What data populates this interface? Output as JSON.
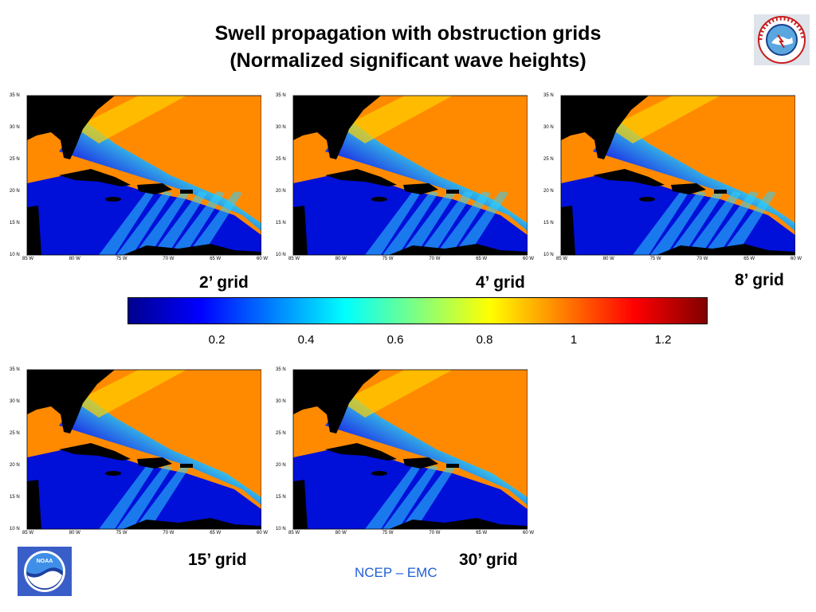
{
  "title": {
    "line1": "Swell propagation with obstruction grids",
    "line2": "(Normalized significant wave heights)"
  },
  "logos": {
    "nws": "NATIONAL WEATHER SERVICE",
    "noaa": "NOAA"
  },
  "panels": [
    {
      "caption": "2’ grid"
    },
    {
      "caption": "4’ grid"
    },
    {
      "caption": "8’ grid"
    },
    {
      "caption": "15’ grid"
    },
    {
      "caption": "30’ grid"
    }
  ],
  "axes": {
    "y_ticks": [
      "35 N",
      "30 N",
      "25 N",
      "20 N",
      "15 N",
      "10 N"
    ],
    "x_ticks": [
      "85 W",
      "80 W",
      "75 W",
      "70 W",
      "65 W",
      "60 W"
    ]
  },
  "colorbar": {
    "labels": [
      "0.2",
      "0.4",
      "0.6",
      "0.8",
      "1",
      "1.2"
    ],
    "min": 0,
    "max": 1.3,
    "colors": [
      "#00008f",
      "#0000ff",
      "#0080ff",
      "#00ffff",
      "#80ff80",
      "#ffff00",
      "#ff8000",
      "#ff0000",
      "#800000"
    ]
  },
  "footer": "NCEP – EMC"
}
